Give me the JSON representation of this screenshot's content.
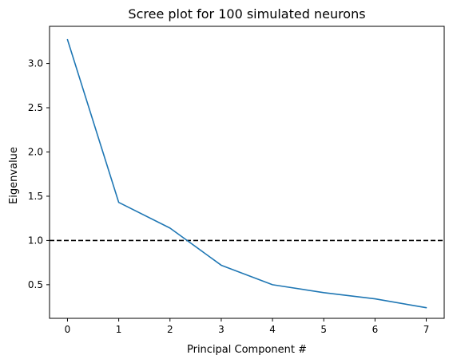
{
  "chart_data": {
    "type": "line",
    "title": "Scree plot for 100 simulated neurons",
    "xlabel": "Principal Component #",
    "ylabel": "Eigenvalue",
    "x": [
      0,
      1,
      2,
      3,
      4,
      5,
      6,
      7
    ],
    "series": [
      {
        "values": [
          3.27,
          1.43,
          1.14,
          0.72,
          0.5,
          0.41,
          0.34,
          0.24
        ],
        "color": "#1f77b4"
      }
    ],
    "reference_lines": [
      {
        "y": 1.0,
        "style": "dashed",
        "color": "#000000"
      }
    ],
    "xlim": [
      -0.35,
      7.35
    ],
    "ylim": [
      0.12,
      3.42
    ],
    "xticks": [
      "0",
      "1",
      "2",
      "3",
      "4",
      "5",
      "6",
      "7"
    ],
    "yticks": [
      "0.5",
      "1.0",
      "1.5",
      "2.0",
      "2.5",
      "3.0"
    ],
    "grid": false,
    "legend": "none"
  }
}
